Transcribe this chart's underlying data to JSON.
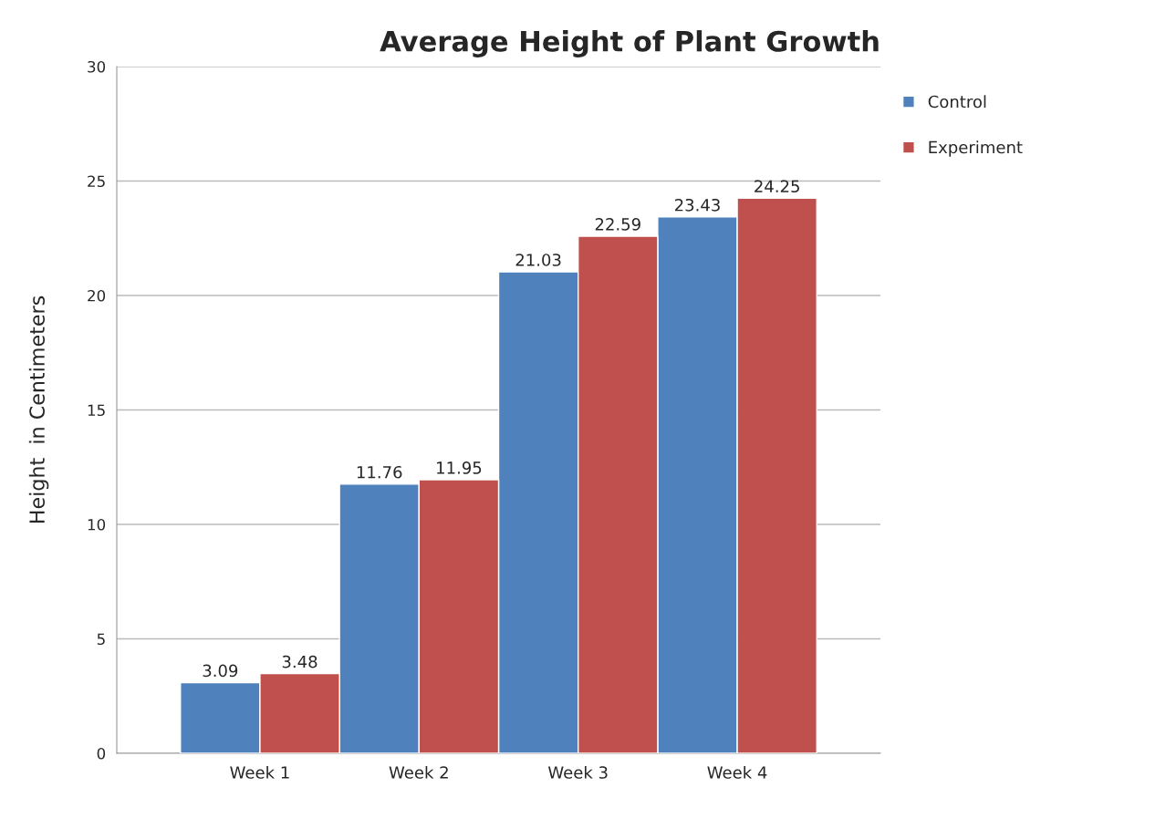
{
  "chart_data": {
    "type": "bar",
    "title": "Average Height of Plant Growth",
    "ylabel": "Height  in Centimeters",
    "categories": [
      "Week 1",
      "Week 2",
      "Week 3",
      "Week 4"
    ],
    "series": [
      {
        "name": "Control",
        "color": "#4f81bd",
        "values": [
          3.09,
          11.76,
          21.03,
          23.43
        ]
      },
      {
        "name": "Experiment",
        "color": "#c0504d",
        "values": [
          3.48,
          11.95,
          22.59,
          24.25
        ]
      }
    ],
    "ylim": [
      0,
      30
    ],
    "yticks": [
      0,
      5,
      10,
      15,
      20,
      25,
      30
    ],
    "grid": "y",
    "legend": "top right",
    "data_labels": true
  }
}
